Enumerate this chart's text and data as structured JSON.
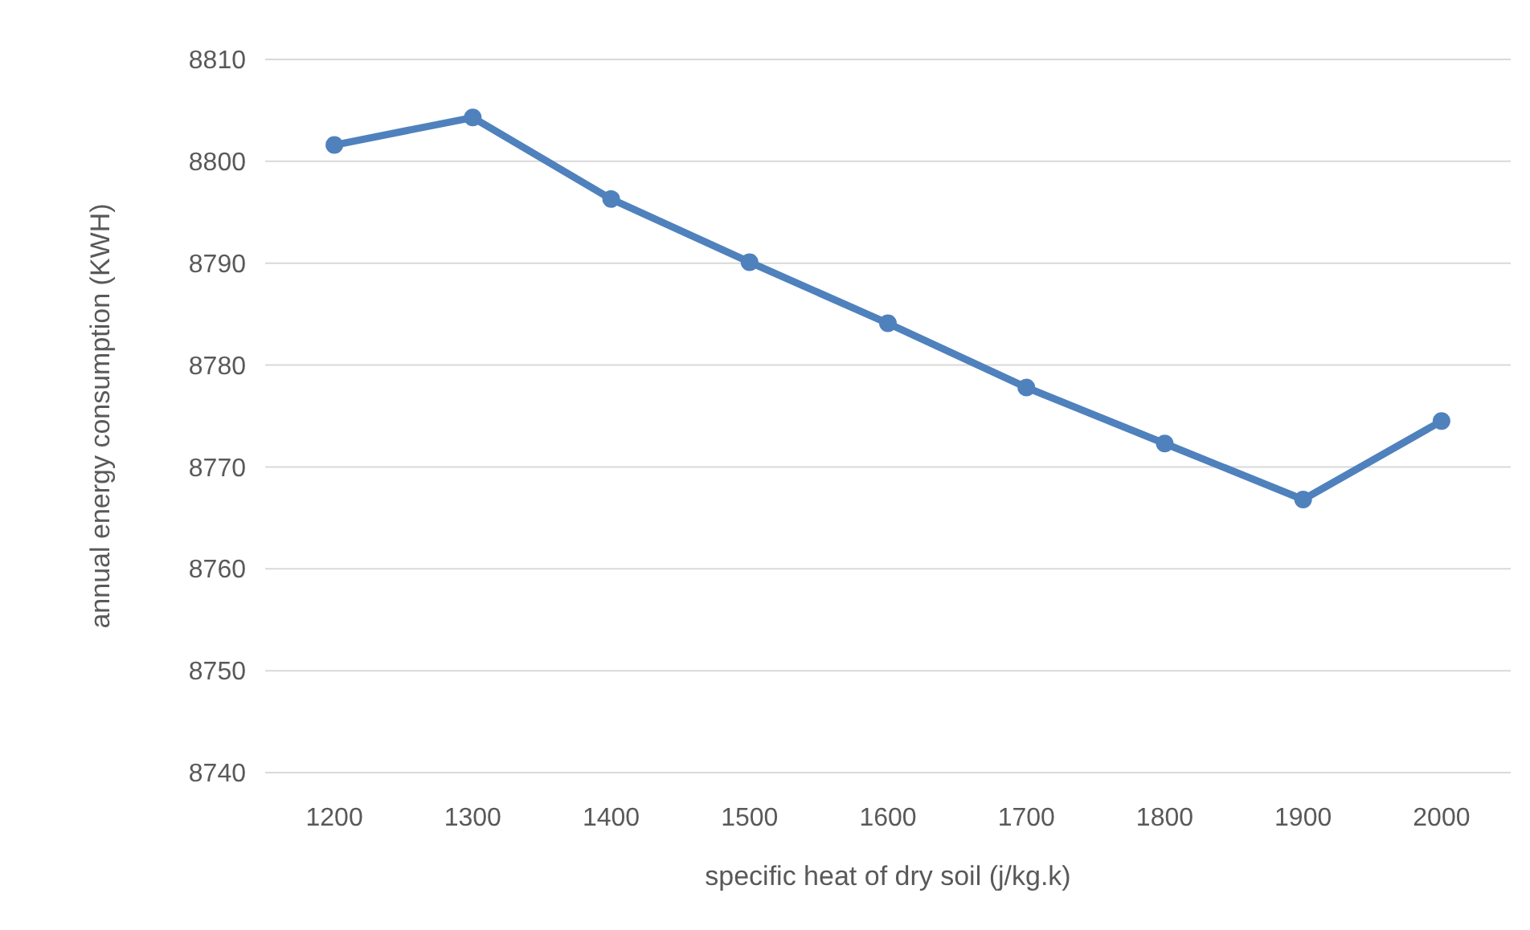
{
  "chart_data": {
    "type": "line",
    "xlabel": "specific heat of dry soil (j/kg.k)",
    "ylabel": "annual energy consumption (KWH)",
    "categories": [
      "1200",
      "1300",
      "1400",
      "1500",
      "1600",
      "1700",
      "1800",
      "1900",
      "2000"
    ],
    "series": [
      {
        "color": "#4f81bd",
        "values": [
          8801.6,
          8804.3,
          8796.3,
          8790.1,
          8784.1,
          8777.8,
          8772.3,
          8766.8,
          8774.5
        ]
      }
    ],
    "ylim": [
      8740,
      8810
    ],
    "yticks": [
      8740,
      8750,
      8760,
      8770,
      8780,
      8790,
      8800,
      8810
    ],
    "grid": "y",
    "marker": "circle",
    "line_style": "solid"
  }
}
